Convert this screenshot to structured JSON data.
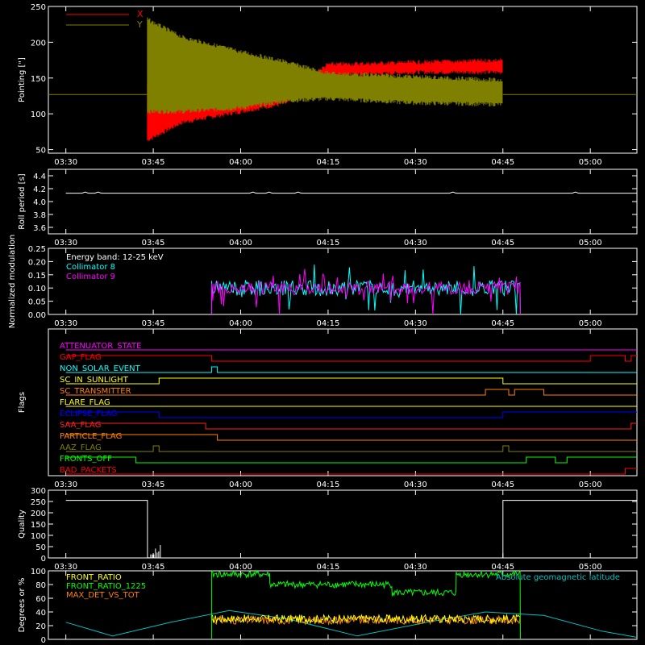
{
  "chart_data": [
    {
      "type": "line",
      "panel": "pointing",
      "ylabel": "Pointing [\"]",
      "ylim": [
        45,
        250
      ],
      "yticks": [
        50,
        100,
        150,
        200,
        250
      ],
      "xticks": [
        "03:30",
        "03:45",
        "04:00",
        "04:15",
        "04:30",
        "04:45",
        "05:00"
      ],
      "series": [
        {
          "name": "X",
          "color": "#ff0000",
          "x": [
            "03:44",
            "03:50",
            "04:00",
            "04:08",
            "04:15",
            "04:30",
            "04:45"
          ],
          "y_low": [
            60,
            85,
            100,
            112,
            150,
            155,
            155
          ],
          "y_high": [
            145,
            140,
            135,
            135,
            172,
            175,
            178
          ]
        },
        {
          "name": "Y",
          "color": "#808000",
          "x": [
            "03:44",
            "03:50",
            "04:00",
            "04:08",
            "04:15",
            "04:30",
            "04:45"
          ],
          "y_low": [
            100,
            100,
            105,
            115,
            118,
            112,
            110
          ],
          "y_high": [
            235,
            210,
            190,
            175,
            160,
            155,
            150
          ]
        }
      ],
      "baseline": 127
    },
    {
      "type": "line",
      "panel": "roll-period",
      "ylabel": "Roll period [s]",
      "ylim": [
        3.5,
        4.5
      ],
      "yticks": [
        "3.6",
        "3.8",
        "4.0",
        "4.2",
        "4.4"
      ],
      "xticks": [
        "03:30",
        "03:45",
        "04:00",
        "04:15",
        "04:30",
        "04:45",
        "05:00"
      ],
      "series": [
        {
          "name": "",
          "color": "#ffffff",
          "x_range": [
            "03:30",
            "05:08"
          ],
          "y": 4.13
        }
      ]
    },
    {
      "type": "line",
      "panel": "modulation",
      "ylabel": "Normalized modulation",
      "ylim": [
        0,
        0.25
      ],
      "yticks": [
        "0.00",
        "0.05",
        "0.10",
        "0.15",
        "0.20",
        "0.25"
      ],
      "xticks": [
        "03:30",
        "03:45",
        "04:00",
        "04:15",
        "04:30",
        "04:45",
        "05:00"
      ],
      "annotation": "Energy band: 12-25 keV",
      "series": [
        {
          "name": "Collimator 8",
          "color": "#00ffff",
          "x_range": [
            "03:55",
            "04:48"
          ],
          "mean": 0.1,
          "spread": 0.06
        },
        {
          "name": "Collimator 9",
          "color": "#ff00ff",
          "x_range": [
            "03:55",
            "04:48"
          ],
          "mean": 0.1,
          "spread": 0.05
        }
      ]
    },
    {
      "type": "table",
      "panel": "flags",
      "ylabel": "Flags",
      "xticks": [
        "03:30",
        "03:45",
        "04:00",
        "04:15",
        "04:30",
        "04:45",
        "05:00"
      ],
      "flags": [
        {
          "name": "ATTENUATOR_STATE",
          "color": "#ff00ff",
          "segments": [
            [
              "03:30",
              "05:08",
              0
            ]
          ]
        },
        {
          "name": "GAP_FLAG",
          "color": "#ff0000",
          "segments": [
            [
              "03:30",
              "03:55",
              1
            ],
            [
              "03:55",
              "05:00",
              0
            ],
            [
              "05:00",
              "05:06",
              1
            ],
            [
              "05:06",
              "05:07",
              0
            ],
            [
              "05:07",
              "05:08",
              1
            ]
          ]
        },
        {
          "name": "NON_SOLAR_EVENT",
          "color": "#00ffff",
          "segments": [
            [
              "03:30",
              "03:55",
              0
            ],
            [
              "03:55",
              "03:56",
              1
            ],
            [
              "03:56",
              "05:08",
              0
            ]
          ]
        },
        {
          "name": "SC_IN_SUNLIGHT",
          "color": "#ffff00",
          "segments": [
            [
              "03:30",
              "03:46",
              0
            ],
            [
              "03:46",
              "04:45",
              1
            ],
            [
              "04:45",
              "05:08",
              0
            ]
          ]
        },
        {
          "name": "SC_TRANSMITTER",
          "color": "#ff8000",
          "segments": [
            [
              "03:30",
              "04:42",
              0
            ],
            [
              "04:42",
              "04:46",
              1
            ],
            [
              "04:46",
              "04:47",
              0
            ],
            [
              "04:47",
              "04:52",
              1
            ],
            [
              "04:52",
              "05:08",
              0
            ]
          ]
        },
        {
          "name": "FLARE_FLAG",
          "color": "#ffff00",
          "segments": [
            [
              "03:30",
              "05:08",
              0
            ]
          ]
        },
        {
          "name": "ECLIPSE_FLAG",
          "color": "#0000ff",
          "segments": [
            [
              "03:30",
              "03:46",
              1
            ],
            [
              "03:46",
              "04:45",
              0
            ],
            [
              "04:45",
              "05:08",
              1
            ]
          ]
        },
        {
          "name": "SAA_FLAG",
          "color": "#ff2020",
          "segments": [
            [
              "03:30",
              "03:54",
              1
            ],
            [
              "03:54",
              "05:07",
              0
            ],
            [
              "05:07",
              "05:08",
              1
            ]
          ]
        },
        {
          "name": "PARTICLE_FLAG",
          "color": "#ff8000",
          "segments": [
            [
              "03:30",
              "03:56",
              1
            ],
            [
              "03:56",
              "05:08",
              0
            ]
          ]
        },
        {
          "name": "AAZ_FLAG",
          "color": "#808000",
          "segments": [
            [
              "03:30",
              "03:45",
              0
            ],
            [
              "03:45",
              "03:46",
              1
            ],
            [
              "03:46",
              "04:45",
              0
            ],
            [
              "04:45",
              "04:46",
              1
            ],
            [
              "04:46",
              "05:08",
              0
            ]
          ]
        },
        {
          "name": "FRONTS_OFF",
          "color": "#00ff00",
          "segments": [
            [
              "03:30",
              "03:42",
              1
            ],
            [
              "03:42",
              "04:49",
              0
            ],
            [
              "04:49",
              "04:54",
              1
            ],
            [
              "04:54",
              "04:56",
              0
            ],
            [
              "04:56",
              "05:08",
              1
            ]
          ]
        },
        {
          "name": "BAD_PACKETS",
          "color": "#ff0000",
          "segments": [
            [
              "03:30",
              "05:06",
              0
            ],
            [
              "05:06",
              "05:08",
              1
            ]
          ]
        }
      ]
    },
    {
      "type": "line",
      "panel": "quality",
      "ylabel": "Quality",
      "ylim": [
        0,
        300
      ],
      "yticks": [
        0,
        50,
        100,
        150,
        200,
        250,
        300
      ],
      "xticks": [
        "03:30",
        "03:45",
        "04:00",
        "04:15",
        "04:30",
        "04:45",
        "05:00"
      ],
      "series": [
        {
          "name": "",
          "color": "#ffffff",
          "x": [
            "03:30",
            "03:44",
            "03:44",
            "04:45",
            "04:45",
            "05:08"
          ],
          "y": [
            255,
            255,
            0,
            0,
            255,
            255
          ]
        }
      ]
    },
    {
      "type": "line",
      "panel": "ratios",
      "ylabel": "Degrees or %",
      "ylim": [
        0,
        100
      ],
      "yticks": [
        0,
        20,
        40,
        60,
        80,
        100
      ],
      "series": [
        {
          "name": "FRONT_RATIO",
          "color": "#ffff00",
          "x_range": [
            "03:55",
            "04:48"
          ],
          "mean": 30
        },
        {
          "name": "FRONT_RATIO_1225",
          "color": "#00ff00",
          "x": [
            "03:55",
            "04:05",
            "04:05",
            "04:26",
            "04:26",
            "04:37",
            "04:37",
            "04:48"
          ],
          "y": [
            95,
            95,
            80,
            80,
            68,
            68,
            95,
            95
          ]
        },
        {
          "name": "MAX_DET_VS_TOT",
          "color": "#ff8000",
          "x_range": [
            "03:55",
            "04:48"
          ],
          "mean": 28
        },
        {
          "name": "Absolute geomagnetic latitude",
          "color": "#00c0c0",
          "x": [
            "03:30",
            "03:38",
            "03:48",
            "03:58",
            "04:08",
            "04:20",
            "04:32",
            "04:42",
            "04:52",
            "05:02",
            "05:08"
          ],
          "y": [
            25,
            5,
            25,
            42,
            30,
            5,
            25,
            40,
            35,
            12,
            3
          ]
        }
      ]
    }
  ],
  "colors": {
    "background": "#000000",
    "axes": "#ffffff"
  }
}
